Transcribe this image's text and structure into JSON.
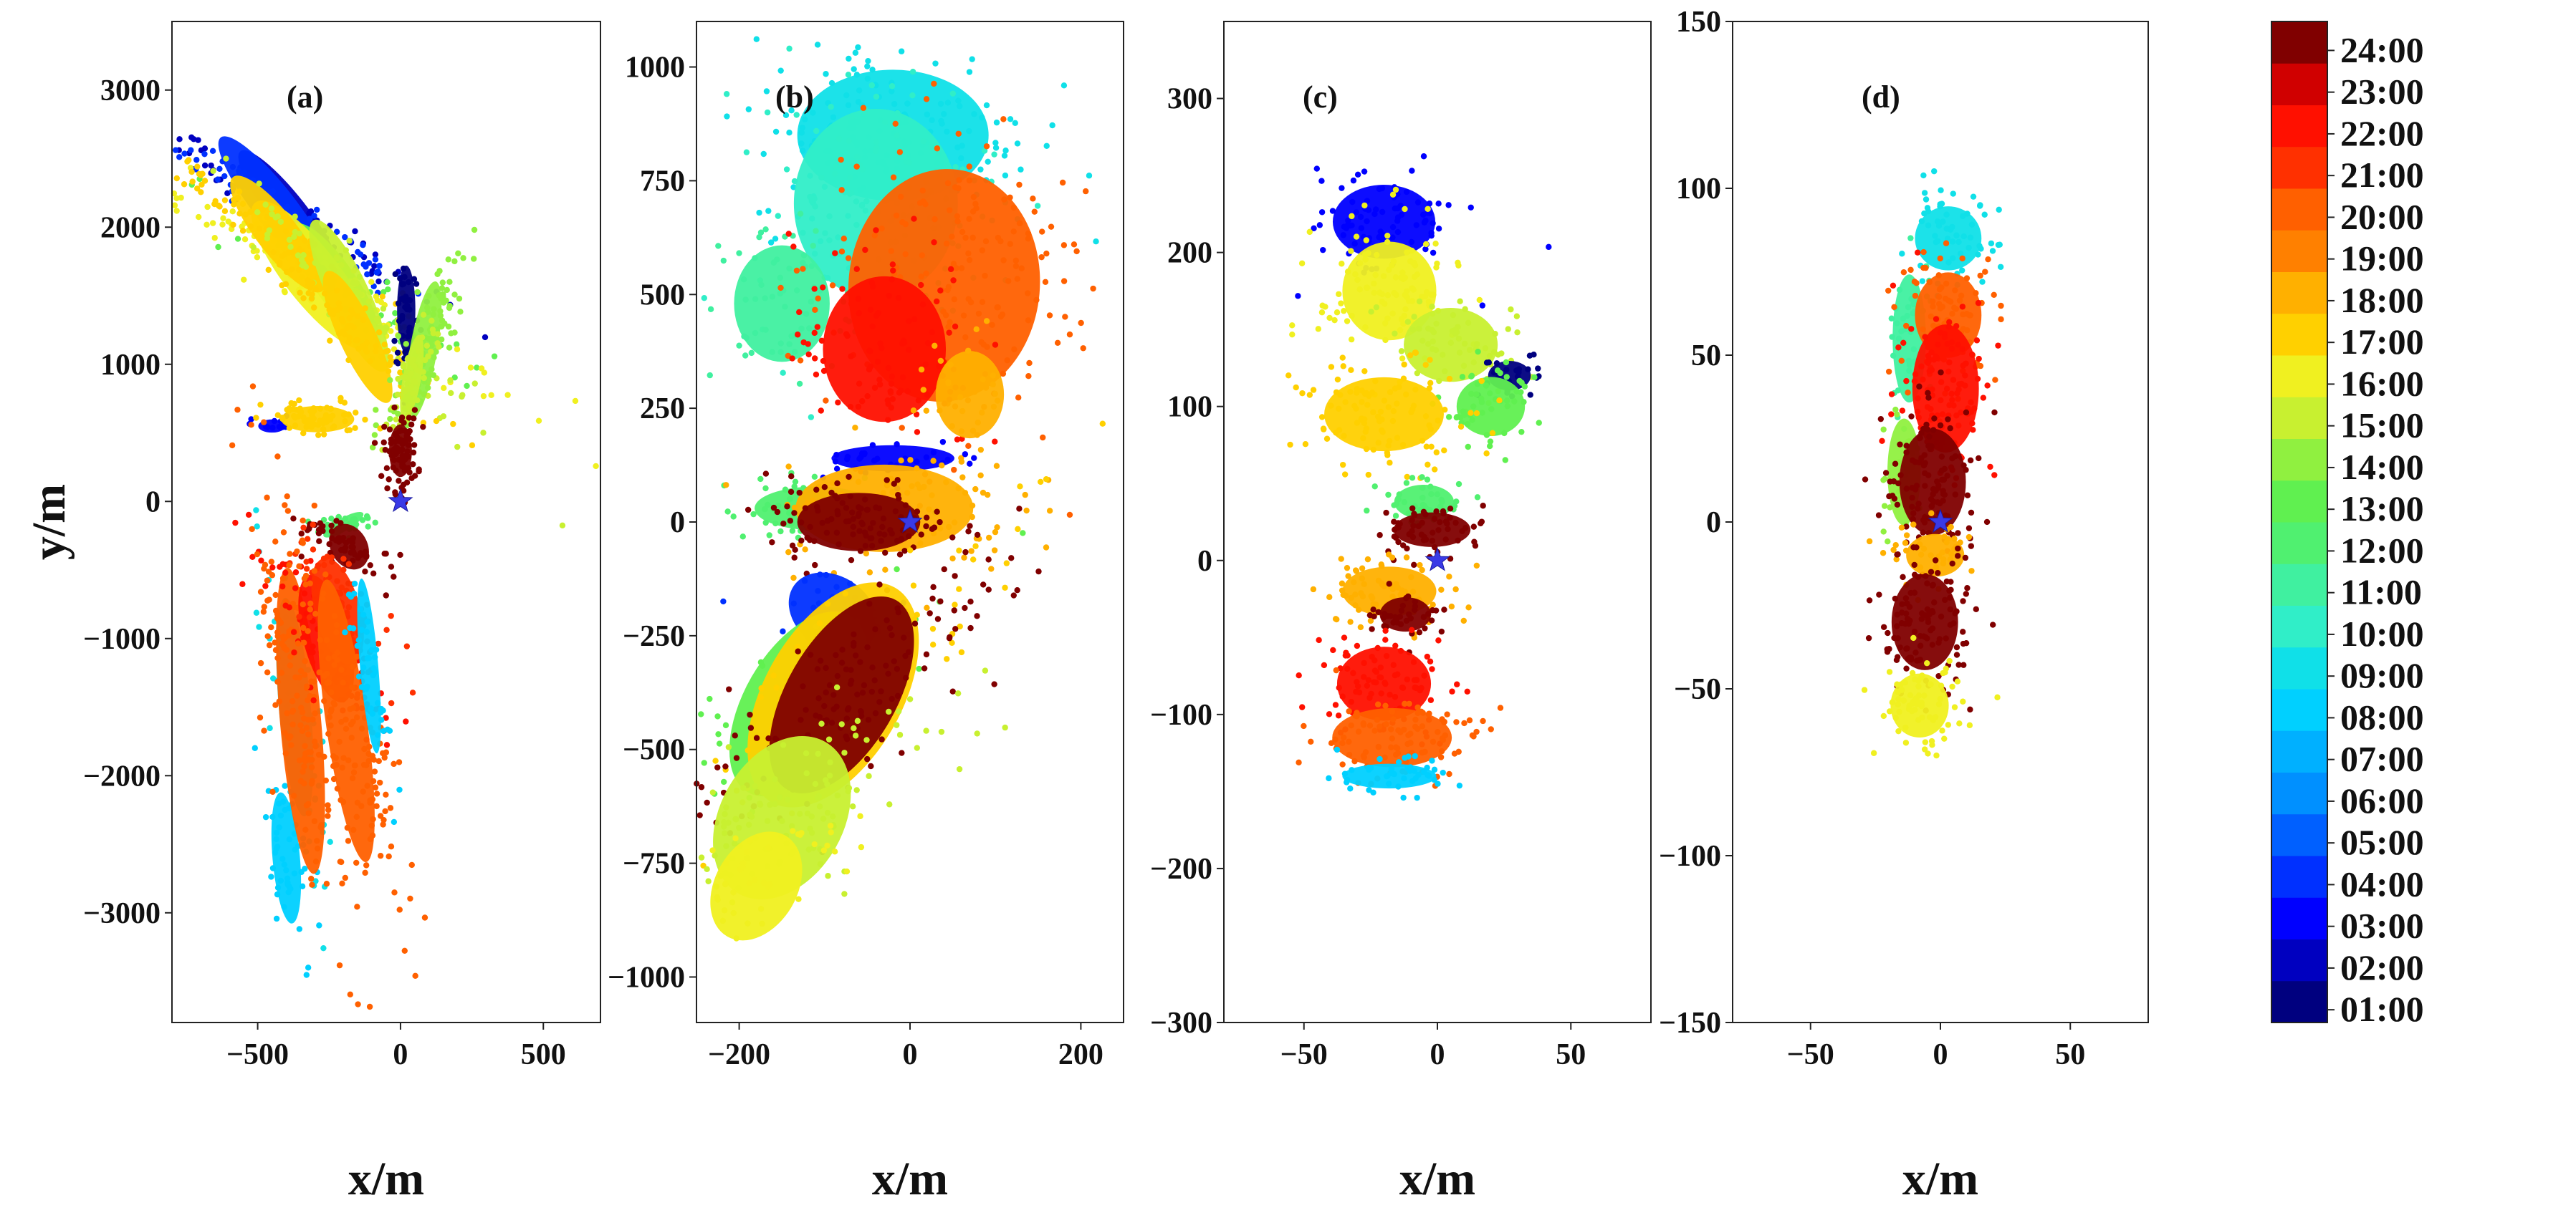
{
  "chart_data": [
    {
      "type": "scatter",
      "panel_label": "(a)",
      "xlabel": "x/m",
      "ylabel": "y/m",
      "xlim": [
        -800,
        700
      ],
      "ylim": [
        -3800,
        3500
      ],
      "xticks": [
        -500,
        0,
        500
      ],
      "yticks": [
        3000,
        2000,
        1000,
        0,
        -1000,
        -2000,
        -3000
      ],
      "origin_marker": {
        "x": 0,
        "y": 0,
        "symbol": "star",
        "color": "#3a3ae6"
      },
      "clusters": [
        {
          "time": "02:00",
          "cx": -390,
          "cy": 2100,
          "sx": 40,
          "sy": 360,
          "rot": -38,
          "n": 90
        },
        {
          "time": "04:00",
          "cx": -440,
          "cy": 2150,
          "sx": 45,
          "sy": 400,
          "rot": -38,
          "n": 70
        },
        {
          "time": "13:00",
          "cx": -230,
          "cy": 1600,
          "sx": 45,
          "sy": 320,
          "rot": -35,
          "n": 70
        },
        {
          "time": "16:00",
          "cx": -310,
          "cy": 1650,
          "sx": 60,
          "sy": 420,
          "rot": -38,
          "n": 140
        },
        {
          "time": "17:00",
          "cx": -430,
          "cy": 1950,
          "sx": 45,
          "sy": 330,
          "rot": -38,
          "n": 70
        },
        {
          "time": "15:00",
          "cx": -180,
          "cy": 1500,
          "sx": 45,
          "sy": 380,
          "rot": -25,
          "n": 100
        },
        {
          "time": "17:00",
          "cx": -150,
          "cy": 1200,
          "sx": 40,
          "sy": 330,
          "rot": -25,
          "n": 90
        },
        {
          "time": "01:00",
          "cx": 20,
          "cy": 1400,
          "sx": 20,
          "sy": 200,
          "rot": 0,
          "n": 40
        },
        {
          "time": "14:00",
          "cx": 80,
          "cy": 1100,
          "sx": 30,
          "sy": 320,
          "rot": 10,
          "n": 110
        },
        {
          "time": "15:00",
          "cx": 40,
          "cy": 900,
          "sx": 20,
          "sy": 200,
          "rot": 10,
          "n": 50
        },
        {
          "time": "03:00",
          "cx": -450,
          "cy": 550,
          "sx": 30,
          "sy": 30,
          "rot": 0,
          "n": 12
        },
        {
          "time": "17:00",
          "cx": -290,
          "cy": 600,
          "sx": 80,
          "sy": 60,
          "rot": 0,
          "n": 70
        },
        {
          "time": "24:00",
          "cx": 0,
          "cy": 370,
          "sx": 25,
          "sy": 120,
          "rot": 0,
          "n": 90
        },
        {
          "time": "12:00",
          "cx": -200,
          "cy": -170,
          "sx": 50,
          "sy": 30,
          "rot": -30,
          "n": 30
        },
        {
          "time": "24:00",
          "cx": -180,
          "cy": -330,
          "sx": 40,
          "sy": 110,
          "rot": -30,
          "n": 60
        },
        {
          "time": "09:00",
          "cx": -370,
          "cy": -1500,
          "sx": 35,
          "sy": 500,
          "rot": -5,
          "n": 60
        },
        {
          "time": "08:00",
          "cx": -400,
          "cy": -2600,
          "sx": 30,
          "sy": 300,
          "rot": -5,
          "n": 50
        },
        {
          "time": "20:00",
          "cx": -350,
          "cy": -1600,
          "sx": 45,
          "sy": 700,
          "rot": -5,
          "n": 150
        },
        {
          "time": "22:00",
          "cx": -260,
          "cy": -1000,
          "sx": 50,
          "sy": 300,
          "rot": -15,
          "n": 110
        },
        {
          "time": "21:00",
          "cx": -220,
          "cy": -800,
          "sx": 50,
          "sy": 250,
          "rot": -15,
          "n": 80
        },
        {
          "time": "20:00",
          "cx": -190,
          "cy": -1600,
          "sx": 45,
          "sy": 650,
          "rot": -8,
          "n": 140
        },
        {
          "time": "08:00",
          "cx": -110,
          "cy": -1200,
          "sx": 20,
          "sy": 400,
          "rot": -5,
          "n": 40
        }
      ]
    },
    {
      "type": "scatter",
      "panel_label": "(b)",
      "xlabel": "x/m",
      "ylabel": "",
      "xlim": [
        -250,
        250
      ],
      "ylim": [
        -1100,
        1100
      ],
      "xticks": [
        -200,
        0,
        200
      ],
      "yticks": [
        1000,
        750,
        500,
        250,
        0,
        -250,
        -500,
        -750,
        -1000
      ],
      "origin_marker": {
        "x": 0,
        "y": 0,
        "symbol": "star",
        "color": "#3a3ae6"
      },
      "clusters": [
        {
          "time": "09:00",
          "cx": -20,
          "cy": 850,
          "sx": 70,
          "sy": 90,
          "rot": 0,
          "n": 180
        },
        {
          "time": "10:00",
          "cx": -40,
          "cy": 700,
          "sx": 60,
          "sy": 130,
          "rot": 0,
          "n": 130
        },
        {
          "time": "11:00",
          "cx": -150,
          "cy": 480,
          "sx": 35,
          "sy": 80,
          "rot": 0,
          "n": 60
        },
        {
          "time": "20:00",
          "cx": 40,
          "cy": 520,
          "sx": 70,
          "sy": 160,
          "rot": 5,
          "n": 200
        },
        {
          "time": "22:00",
          "cx": -30,
          "cy": 380,
          "sx": 45,
          "sy": 100,
          "rot": 0,
          "n": 110
        },
        {
          "time": "18:00",
          "cx": 70,
          "cy": 280,
          "sx": 25,
          "sy": 60,
          "rot": 0,
          "n": 30
        },
        {
          "time": "03:00",
          "cx": -20,
          "cy": 140,
          "sx": 45,
          "sy": 18,
          "rot": 0,
          "n": 30
        },
        {
          "time": "12:00",
          "cx": -110,
          "cy": 30,
          "sx": 45,
          "sy": 30,
          "rot": 0,
          "n": 55
        },
        {
          "time": "18:00",
          "cx": -30,
          "cy": 30,
          "sx": 65,
          "sy": 60,
          "rot": 0,
          "n": 90
        },
        {
          "time": "24:00",
          "cx": -60,
          "cy": 0,
          "sx": 45,
          "sy": 40,
          "rot": 0,
          "n": 110
        },
        {
          "time": "04:00",
          "cx": -90,
          "cy": -200,
          "sx": 35,
          "sy": 50,
          "rot": 35,
          "n": 25
        },
        {
          "time": "13:00",
          "cx": -130,
          "cy": -400,
          "sx": 40,
          "sy": 140,
          "rot": 30,
          "n": 70
        },
        {
          "time": "17:00",
          "cx": -90,
          "cy": -380,
          "sx": 50,
          "sy": 170,
          "rot": 30,
          "n": 80
        },
        {
          "time": "24:00",
          "cx": -80,
          "cy": -380,
          "sx": 40,
          "sy": 150,
          "rot": 30,
          "n": 160
        },
        {
          "time": "15:00",
          "cx": -150,
          "cy": -650,
          "sx": 45,
          "sy": 120,
          "rot": 30,
          "n": 130
        },
        {
          "time": "16:00",
          "cx": -180,
          "cy": -800,
          "sx": 30,
          "sy": 80,
          "rot": 30,
          "n": 40
        }
      ]
    },
    {
      "type": "scatter",
      "panel_label": "(c)",
      "xlabel": "x/m",
      "ylabel": "",
      "xlim": [
        -80,
        80
      ],
      "ylim": [
        -300,
        350
      ],
      "xticks": [
        -50,
        0,
        50
      ],
      "yticks": [
        300,
        200,
        100,
        0,
        -100,
        -200,
        -300
      ],
      "origin_marker": {
        "x": 0,
        "y": 0,
        "symbol": "star",
        "color": "#3a3ae6"
      },
      "clusters": [
        {
          "time": "03:00",
          "cx": -20,
          "cy": 220,
          "sx": 12,
          "sy": 15,
          "rot": 0,
          "n": 90
        },
        {
          "time": "16:00",
          "cx": -18,
          "cy": 175,
          "sx": 11,
          "sy": 20,
          "rot": 0,
          "n": 110
        },
        {
          "time": "15:00",
          "cx": 5,
          "cy": 140,
          "sx": 11,
          "sy": 15,
          "rot": 0,
          "n": 60
        },
        {
          "time": "01:00",
          "cx": 27,
          "cy": 120,
          "sx": 5,
          "sy": 6,
          "rot": 0,
          "n": 25
        },
        {
          "time": "13:00",
          "cx": 20,
          "cy": 100,
          "sx": 8,
          "sy": 12,
          "rot": 0,
          "n": 50
        },
        {
          "time": "17:00",
          "cx": -20,
          "cy": 95,
          "sx": 14,
          "sy": 15,
          "rot": 0,
          "n": 110
        },
        {
          "time": "12:00",
          "cx": -5,
          "cy": 38,
          "sx": 7,
          "sy": 7,
          "rot": 0,
          "n": 40
        },
        {
          "time": "24:00",
          "cx": -2,
          "cy": 20,
          "sx": 9,
          "sy": 7,
          "rot": 0,
          "n": 60
        },
        {
          "time": "18:00",
          "cx": -18,
          "cy": -20,
          "sx": 11,
          "sy": 10,
          "rot": 0,
          "n": 80
        },
        {
          "time": "24:00",
          "cx": -12,
          "cy": -35,
          "sx": 6,
          "sy": 7,
          "rot": 0,
          "n": 40
        },
        {
          "time": "22:00",
          "cx": -20,
          "cy": -80,
          "sx": 11,
          "sy": 15,
          "rot": 0,
          "n": 90
        },
        {
          "time": "20:00",
          "cx": -17,
          "cy": -115,
          "sx": 14,
          "sy": 12,
          "rot": 0,
          "n": 100
        },
        {
          "time": "08:00",
          "cx": -18,
          "cy": -140,
          "sx": 11,
          "sy": 5,
          "rot": 0,
          "n": 45
        }
      ]
    },
    {
      "type": "scatter",
      "panel_label": "(d)",
      "xlabel": "x/m",
      "ylabel": "",
      "xlim": [
        -80,
        80
      ],
      "ylim": [
        -150,
        150
      ],
      "xticks": [
        -50,
        0,
        50
      ],
      "yticks": [
        150,
        100,
        50,
        0,
        -50,
        -100,
        -150
      ],
      "origin_marker": {
        "x": 0,
        "y": 0,
        "symbol": "star",
        "color": "#3a3ae6"
      },
      "clusters": [
        {
          "time": "09:00",
          "cx": 3,
          "cy": 85,
          "sx": 8,
          "sy": 6,
          "rot": 0,
          "n": 60
        },
        {
          "time": "11:00",
          "cx": -12,
          "cy": 55,
          "sx": 4,
          "sy": 12,
          "rot": 0,
          "n": 40
        },
        {
          "time": "20:00",
          "cx": 3,
          "cy": 62,
          "sx": 8,
          "sy": 8,
          "rot": 0,
          "n": 90
        },
        {
          "time": "22:00",
          "cx": 2,
          "cy": 40,
          "sx": 8,
          "sy": 12,
          "rot": 0,
          "n": 110
        },
        {
          "time": "14:00",
          "cx": -14,
          "cy": 15,
          "sx": 4,
          "sy": 10,
          "rot": 0,
          "n": 30
        },
        {
          "time": "24:00",
          "cx": -3,
          "cy": 12,
          "sx": 8,
          "sy": 10,
          "rot": 0,
          "n": 110
        },
        {
          "time": "18:00",
          "cx": -2,
          "cy": -10,
          "sx": 7,
          "sy": 4,
          "rot": 0,
          "n": 40
        },
        {
          "time": "24:00",
          "cx": -6,
          "cy": -30,
          "sx": 8,
          "sy": 9,
          "rot": 0,
          "n": 120
        },
        {
          "time": "16:00",
          "cx": -8,
          "cy": -55,
          "sx": 7,
          "sy": 6,
          "rot": 0,
          "n": 70
        }
      ]
    }
  ],
  "colorbar": {
    "labels": [
      "01:00",
      "02:00",
      "03:00",
      "04:00",
      "05:00",
      "06:00",
      "07:00",
      "08:00",
      "09:00",
      "10:00",
      "11:00",
      "12:00",
      "13:00",
      "14:00",
      "15:00",
      "16:00",
      "17:00",
      "18:00",
      "19:00",
      "20:00",
      "21:00",
      "22:00",
      "23:00",
      "24:00"
    ],
    "colors": [
      "#00007f",
      "#0000c0",
      "#0000ff",
      "#0030ff",
      "#0060ff",
      "#0090ff",
      "#00b0ff",
      "#00d0ff",
      "#10e0e8",
      "#30eec8",
      "#40f0a0",
      "#50f070",
      "#60f050",
      "#90f040",
      "#c8f030",
      "#f0f020",
      "#ffd000",
      "#ffb000",
      "#ff8000",
      "#ff6000",
      "#ff3000",
      "#ff1000",
      "#d00000",
      "#800000"
    ]
  }
}
